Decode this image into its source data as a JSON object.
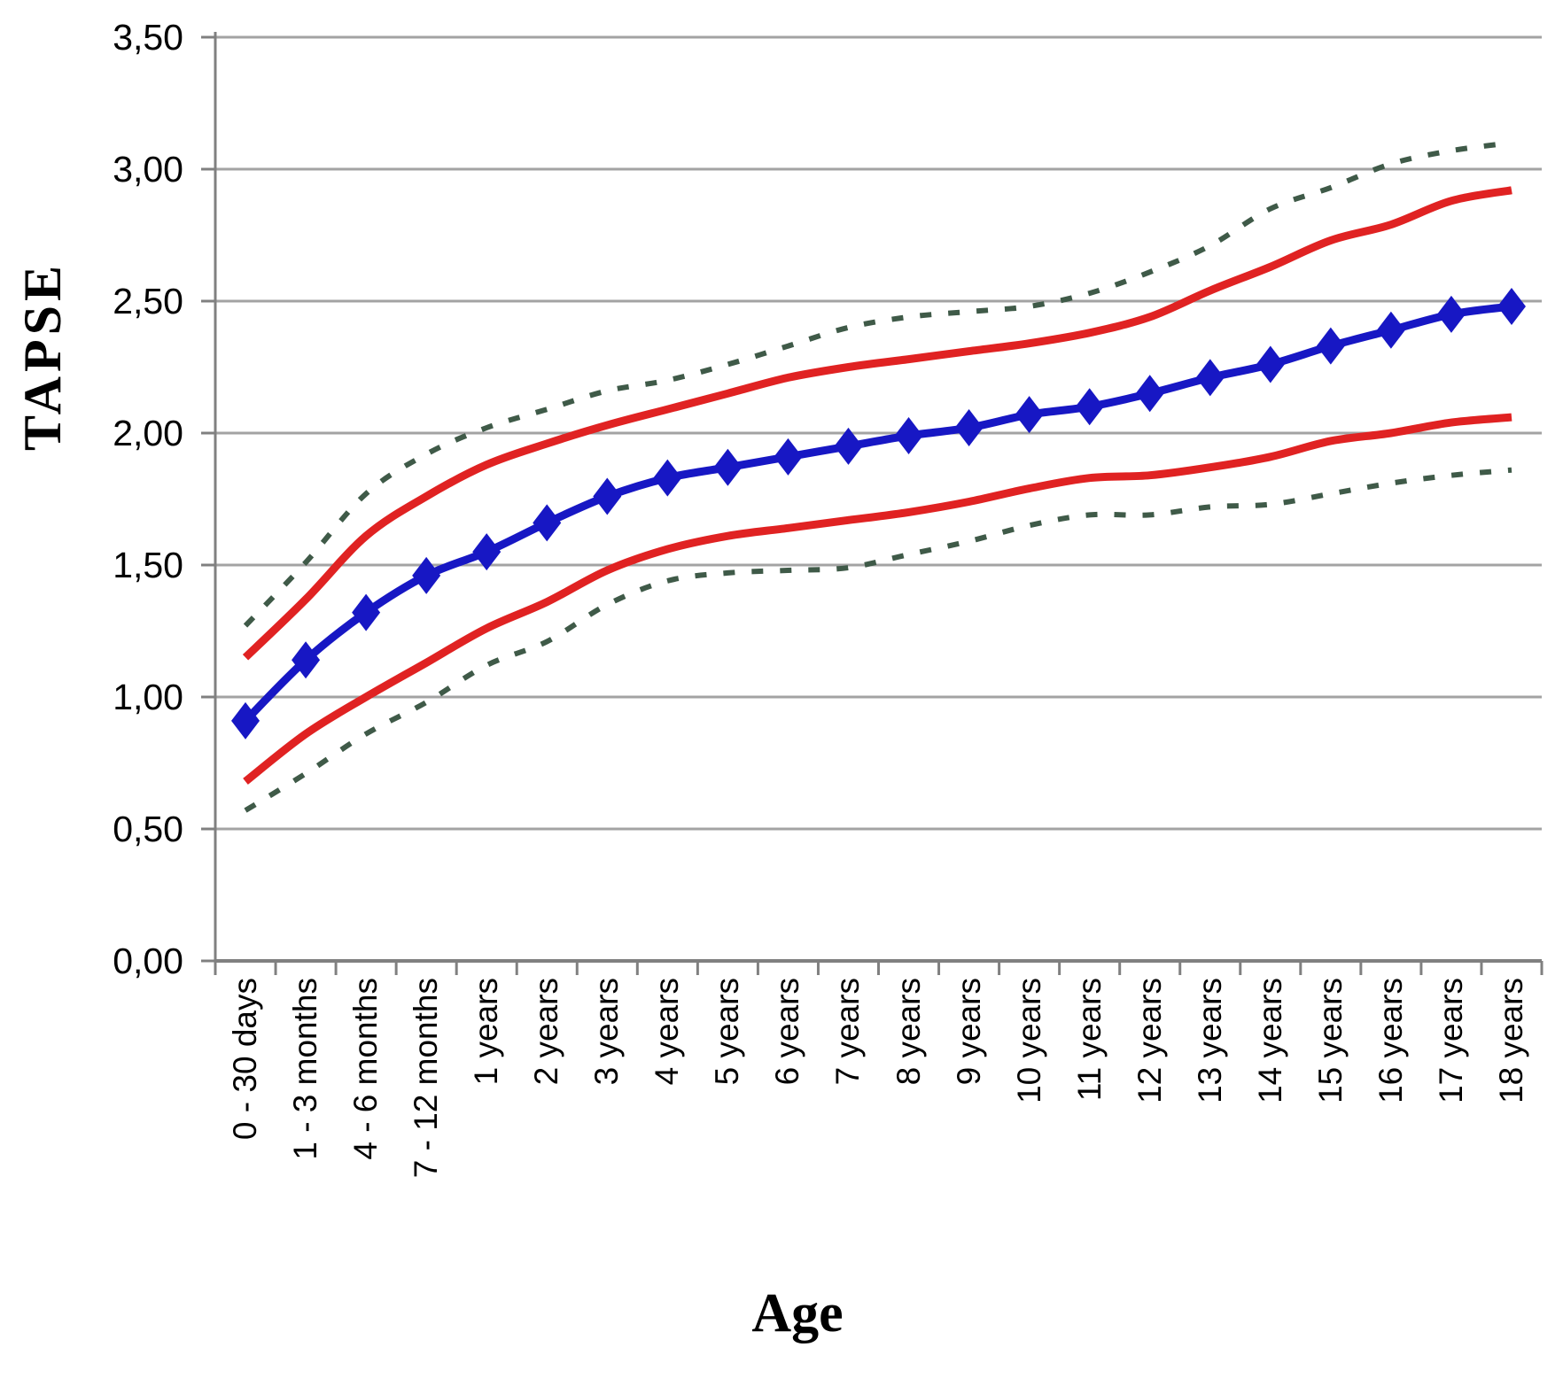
{
  "chart_data": {
    "type": "line",
    "title": "",
    "xlabel": "Age",
    "ylabel": "TAPSE",
    "ylim": [
      0,
      3.5
    ],
    "y_tick_step": 0.5,
    "y_tick_labels": [
      "0,00",
      "0,50",
      "1,00",
      "1,50",
      "2,00",
      "2,50",
      "3,00",
      "3,50"
    ],
    "decimal_separator": ",",
    "grid": "horizontal",
    "legend_position": "none",
    "categories": [
      "0 - 30 days",
      "1 - 3 months",
      "4 - 6 months",
      "7 - 12 months",
      "1 years",
      "2 years",
      "3 years",
      "4 years",
      "5 years",
      "6 years",
      "7 years",
      "8 years",
      "9 years",
      "10 years",
      "11 years",
      "12 years",
      "13 years",
      "14 years",
      "15 years",
      "16 years",
      "17 years",
      "18 years"
    ],
    "series": [
      {
        "name": "green-upper-dashed-line",
        "color": "#3f5a48",
        "style": "dashed",
        "width": 6,
        "marker": "none",
        "values": [
          1.27,
          1.51,
          1.77,
          1.92,
          2.02,
          2.09,
          2.16,
          2.2,
          2.26,
          2.33,
          2.4,
          2.44,
          2.46,
          2.48,
          2.53,
          2.61,
          2.71,
          2.85,
          2.93,
          3.02,
          3.07,
          3.1
        ]
      },
      {
        "name": "red-upper-solid-line",
        "color": "#e02222",
        "style": "solid",
        "width": 9,
        "marker": "none",
        "values": [
          1.15,
          1.37,
          1.61,
          1.76,
          1.88,
          1.96,
          2.03,
          2.09,
          2.15,
          2.21,
          2.25,
          2.28,
          2.31,
          2.34,
          2.38,
          2.44,
          2.54,
          2.63,
          2.73,
          2.79,
          2.88,
          2.92
        ]
      },
      {
        "name": "blue-mean-diamond-line",
        "color": "#1717c4",
        "style": "solid",
        "width": 9,
        "marker": "diamond",
        "values": [
          0.91,
          1.14,
          1.32,
          1.46,
          1.55,
          1.66,
          1.76,
          1.83,
          1.87,
          1.91,
          1.95,
          1.99,
          2.02,
          2.07,
          2.1,
          2.15,
          2.21,
          2.26,
          2.33,
          2.39,
          2.45,
          2.48
        ]
      },
      {
        "name": "red-lower-solid-line",
        "color": "#e02222",
        "style": "solid",
        "width": 9,
        "marker": "none",
        "values": [
          0.68,
          0.86,
          1.0,
          1.13,
          1.26,
          1.36,
          1.48,
          1.56,
          1.61,
          1.64,
          1.67,
          1.7,
          1.74,
          1.79,
          1.83,
          1.84,
          1.87,
          1.91,
          1.97,
          2.0,
          2.04,
          2.06
        ]
      },
      {
        "name": "green-lower-dashed-line",
        "color": "#3f5a48",
        "style": "dashed",
        "width": 6,
        "marker": "none",
        "values": [
          0.57,
          0.71,
          0.86,
          0.98,
          1.12,
          1.21,
          1.35,
          1.44,
          1.47,
          1.48,
          1.49,
          1.54,
          1.59,
          1.65,
          1.69,
          1.69,
          1.72,
          1.73,
          1.77,
          1.81,
          1.84,
          1.86
        ]
      }
    ],
    "colors": {
      "gridline": "#a3a3a3",
      "axis": "#808080",
      "tick_text": "#000000"
    }
  }
}
